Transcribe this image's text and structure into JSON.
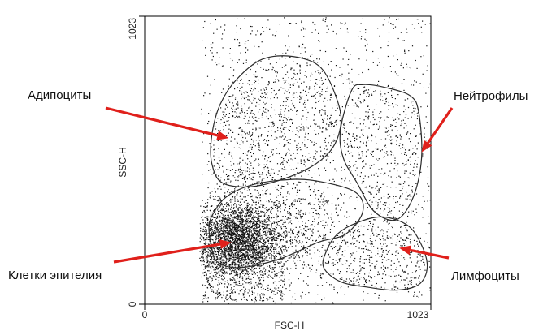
{
  "chart_data": {
    "type": "scatter",
    "title": "",
    "xlabel": "FSC-H",
    "ylabel": "SSC-H",
    "xlim": [
      0,
      1023
    ],
    "ylim": [
      0,
      1023
    ],
    "x_ticks": [
      "0",
      "1023"
    ],
    "y_ticks": [
      "0",
      "1023"
    ],
    "grid": false,
    "accent_color": "#e0201b",
    "populations": [
      {
        "name": "Адипоциты",
        "gate": [
          [
            240,
            600
          ],
          [
            270,
            710
          ],
          [
            330,
            800
          ],
          [
            420,
            870
          ],
          [
            530,
            880
          ],
          [
            630,
            840
          ],
          [
            690,
            720
          ],
          [
            700,
            630
          ],
          [
            660,
            540
          ],
          [
            560,
            470
          ],
          [
            400,
            420
          ],
          [
            280,
            430
          ],
          [
            240,
            500
          ]
        ],
        "density": "medium",
        "arrow_tip": [
          300,
          590
        ]
      },
      {
        "name": "Нейтрофилы",
        "gate": [
          [
            700,
            620
          ],
          [
            740,
            760
          ],
          [
            780,
            780
          ],
          [
            860,
            770
          ],
          [
            950,
            740
          ],
          [
            980,
            680
          ],
          [
            990,
            520
          ],
          [
            960,
            380
          ],
          [
            900,
            300
          ],
          [
            820,
            330
          ],
          [
            760,
            430
          ],
          [
            710,
            520
          ]
        ],
        "density": "low",
        "arrow_tip": [
          990,
          540
        ]
      },
      {
        "name": "Клетки эпителия",
        "gate": [
          [
            240,
            200
          ],
          [
            230,
            280
          ],
          [
            250,
            330
          ],
          [
            290,
            380
          ],
          [
            370,
            420
          ],
          [
            480,
            440
          ],
          [
            600,
            440
          ],
          [
            750,
            400
          ],
          [
            780,
            330
          ],
          [
            720,
            250
          ],
          [
            620,
            220
          ],
          [
            480,
            160
          ],
          [
            340,
            130
          ],
          [
            260,
            150
          ]
        ],
        "density": "high",
        "arrow_tip": [
          310,
          220
        ]
      },
      {
        "name": "Лимфоциты",
        "gate": [
          [
            640,
            130
          ],
          [
            700,
            80
          ],
          [
            800,
            60
          ],
          [
            900,
            50
          ],
          [
            980,
            70
          ],
          [
            1010,
            130
          ],
          [
            990,
            210
          ],
          [
            940,
            280
          ],
          [
            850,
            310
          ],
          [
            760,
            290
          ],
          [
            690,
            250
          ],
          [
            650,
            190
          ]
        ],
        "density": "low",
        "arrow_tip": [
          910,
          200
        ]
      }
    ]
  }
}
